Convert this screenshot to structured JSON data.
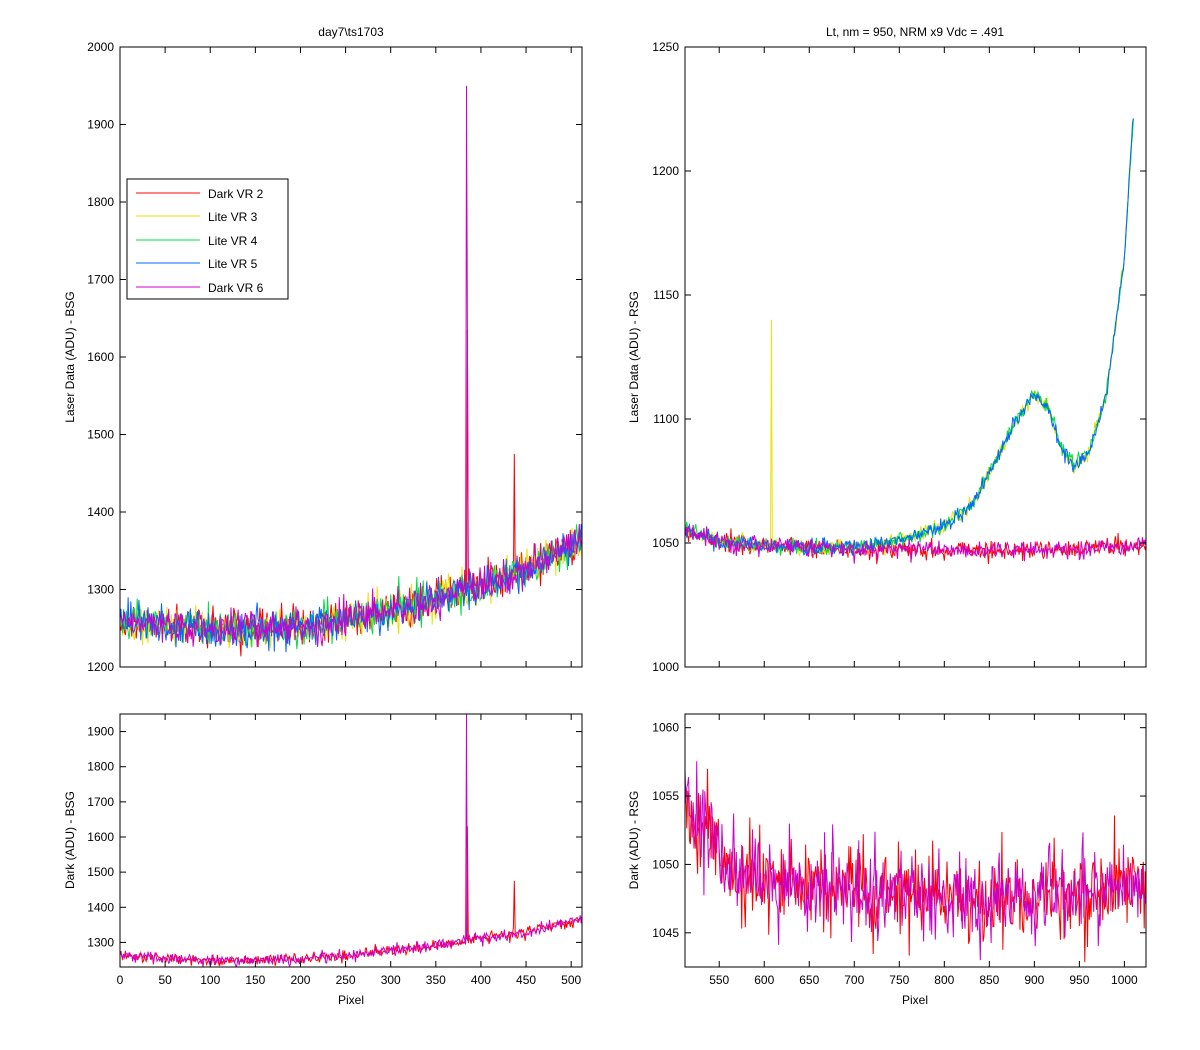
{
  "figure": {
    "background": "#ffffff",
    "axes_color": "#000000"
  },
  "chart_data": [
    {
      "id": "top-left",
      "type": "line",
      "title": "day7\\ts1703",
      "xlabel": "",
      "ylabel": "Laser Data (ADU) - BSG",
      "xlim": [
        0,
        512
      ],
      "ylim": [
        1200,
        2000
      ],
      "xticks": [
        0,
        50,
        100,
        150,
        200,
        250,
        300,
        350,
        400,
        450,
        500
      ],
      "xtick_labels_visible": false,
      "yticks": [
        1200,
        1300,
        1400,
        1500,
        1600,
        1700,
        1800,
        1900,
        2000
      ],
      "grid": false,
      "legend": {
        "placement": "upper-left",
        "entries": [
          {
            "name": "Dark VR 2",
            "color": "#ff0000"
          },
          {
            "name": "Lite VR 3",
            "color": "#e6e600"
          },
          {
            "name": "Lite VR 4",
            "color": "#00dd44"
          },
          {
            "name": "Lite VR 5",
            "color": "#0066ff"
          },
          {
            "name": "Dark VR 6",
            "color": "#cc00cc"
          }
        ]
      },
      "series": [
        {
          "name": "Dark VR 2",
          "color": "#ff0000",
          "noise": 12,
          "baseline": [
            [
              0,
              1260
            ],
            [
              100,
              1248
            ],
            [
              200,
              1252
            ],
            [
              300,
              1272
            ],
            [
              400,
              1305
            ],
            [
              450,
              1325
            ],
            [
              512,
              1365
            ]
          ],
          "spikes": [
            [
              437,
              1475
            ],
            [
              385,
              1635
            ]
          ]
        },
        {
          "name": "Lite VR 3",
          "color": "#e6e600",
          "noise": 12,
          "baseline": [
            [
              0,
              1260
            ],
            [
              100,
              1248
            ],
            [
              200,
              1252
            ],
            [
              300,
              1272
            ],
            [
              400,
              1305
            ],
            [
              450,
              1325
            ],
            [
              512,
              1365
            ]
          ],
          "spikes": []
        },
        {
          "name": "Lite VR 4",
          "color": "#00dd44",
          "noise": 12,
          "baseline": [
            [
              0,
              1260
            ],
            [
              100,
              1248
            ],
            [
              200,
              1252
            ],
            [
              300,
              1272
            ],
            [
              400,
              1305
            ],
            [
              450,
              1325
            ],
            [
              512,
              1365
            ]
          ],
          "spikes": []
        },
        {
          "name": "Lite VR 5",
          "color": "#0066ff",
          "noise": 12,
          "baseline": [
            [
              0,
              1260
            ],
            [
              100,
              1248
            ],
            [
              200,
              1252
            ],
            [
              300,
              1272
            ],
            [
              400,
              1305
            ],
            [
              450,
              1325
            ],
            [
              512,
              1365
            ]
          ],
          "spikes": []
        },
        {
          "name": "Dark VR 6",
          "color": "#cc00cc",
          "noise": 12,
          "baseline": [
            [
              0,
              1260
            ],
            [
              100,
              1248
            ],
            [
              200,
              1252
            ],
            [
              300,
              1272
            ],
            [
              400,
              1305
            ],
            [
              450,
              1325
            ],
            [
              512,
              1365
            ]
          ],
          "spikes": [
            [
              384,
              1950
            ],
            [
              385,
              1635
            ]
          ]
        }
      ]
    },
    {
      "id": "top-right",
      "type": "line",
      "title": "Lt, nm = 950, NRM x9 Vdc = .491",
      "xlabel": "",
      "ylabel": "Laser Data (ADU) - RSG",
      "xlim": [
        512,
        1024
      ],
      "ylim": [
        1000,
        1250
      ],
      "xticks": [
        550,
        600,
        650,
        700,
        750,
        800,
        850,
        900,
        950,
        1000
      ],
      "xtick_labels_visible": false,
      "yticks": [
        1000,
        1050,
        1100,
        1150,
        1200,
        1250
      ],
      "grid": false,
      "series": [
        {
          "name": "Dark VR 2",
          "color": "#ff0000",
          "noise": 1.8,
          "baseline": [
            [
              512,
              1054
            ],
            [
              560,
              1050
            ],
            [
              650,
              1048
            ],
            [
              800,
              1047
            ],
            [
              900,
              1047
            ],
            [
              1024,
              1049
            ]
          ],
          "spikes": []
        },
        {
          "name": "Lite VR 3",
          "color": "#e6e600",
          "noise": 1.5,
          "baseline": [
            [
              512,
              1055
            ],
            [
              560,
              1050
            ],
            [
              650,
              1048
            ],
            [
              700,
              1048
            ],
            [
              760,
              1052
            ],
            [
              800,
              1057
            ],
            [
              830,
              1065
            ],
            [
              860,
              1085
            ],
            [
              880,
              1100
            ],
            [
              900,
              1110
            ],
            [
              915,
              1105
            ],
            [
              930,
              1088
            ],
            [
              945,
              1081
            ],
            [
              960,
              1086
            ],
            [
              980,
              1110
            ],
            [
              1000,
              1165
            ],
            [
              1010,
              1222
            ]
          ],
          "spikes": [
            [
              608,
              1140
            ]
          ]
        },
        {
          "name": "Lite VR 4",
          "color": "#00dd44",
          "noise": 1.5,
          "baseline": [
            [
              512,
              1055
            ],
            [
              560,
              1050
            ],
            [
              650,
              1048
            ],
            [
              700,
              1048
            ],
            [
              760,
              1052
            ],
            [
              800,
              1057
            ],
            [
              830,
              1065
            ],
            [
              860,
              1085
            ],
            [
              880,
              1100
            ],
            [
              900,
              1110
            ],
            [
              915,
              1105
            ],
            [
              930,
              1088
            ],
            [
              945,
              1081
            ],
            [
              960,
              1086
            ],
            [
              980,
              1110
            ],
            [
              1000,
              1165
            ],
            [
              1010,
              1222
            ]
          ],
          "spikes": []
        },
        {
          "name": "Lite VR 5",
          "color": "#0066ff",
          "noise": 1.5,
          "baseline": [
            [
              512,
              1055
            ],
            [
              560,
              1050
            ],
            [
              650,
              1048
            ],
            [
              700,
              1048
            ],
            [
              760,
              1052
            ],
            [
              800,
              1057
            ],
            [
              830,
              1065
            ],
            [
              860,
              1085
            ],
            [
              880,
              1100
            ],
            [
              900,
              1110
            ],
            [
              915,
              1105
            ],
            [
              930,
              1088
            ],
            [
              945,
              1081
            ],
            [
              960,
              1086
            ],
            [
              980,
              1110
            ],
            [
              1000,
              1165
            ],
            [
              1010,
              1224
            ]
          ],
          "spikes": []
        },
        {
          "name": "Dark VR 6",
          "color": "#cc00cc",
          "noise": 1.8,
          "baseline": [
            [
              512,
              1054
            ],
            [
              560,
              1050
            ],
            [
              650,
              1048
            ],
            [
              800,
              1047
            ],
            [
              900,
              1047
            ],
            [
              1024,
              1049
            ]
          ],
          "spikes": []
        }
      ]
    },
    {
      "id": "bottom-left",
      "type": "line",
      "title": "",
      "xlabel": "Pixel",
      "ylabel": "Dark (ADU) - BSG",
      "xlim": [
        0,
        512
      ],
      "ylim": [
        1230,
        1950
      ],
      "xticks": [
        0,
        50,
        100,
        150,
        200,
        250,
        300,
        350,
        400,
        450,
        500
      ],
      "xtick_labels_visible": true,
      "yticks": [
        1300,
        1400,
        1500,
        1600,
        1700,
        1800,
        1900
      ],
      "grid": false,
      "series": [
        {
          "name": "Dark VR 2",
          "color": "#ff0000",
          "noise": 8,
          "baseline": [
            [
              0,
              1262
            ],
            [
              100,
              1248
            ],
            [
              200,
              1252
            ],
            [
              300,
              1275
            ],
            [
              400,
              1310
            ],
            [
              450,
              1330
            ],
            [
              512,
              1368
            ]
          ],
          "spikes": [
            [
              437,
              1475
            ],
            [
              385,
              1630
            ]
          ]
        },
        {
          "name": "Dark VR 6",
          "color": "#cc00cc",
          "noise": 8,
          "baseline": [
            [
              0,
              1262
            ],
            [
              100,
              1248
            ],
            [
              200,
              1252
            ],
            [
              300,
              1275
            ],
            [
              400,
              1310
            ],
            [
              450,
              1330
            ],
            [
              512,
              1368
            ]
          ],
          "spikes": [
            [
              384,
              1950
            ]
          ]
        }
      ]
    },
    {
      "id": "bottom-right",
      "type": "line",
      "title": "",
      "xlabel": "Pixel",
      "ylabel": "Dark (ADU) - RSG",
      "xlim": [
        512,
        1024
      ],
      "ylim": [
        1042.5,
        1061
      ],
      "xticks": [
        550,
        600,
        650,
        700,
        750,
        800,
        850,
        900,
        950,
        1000
      ],
      "xtick_labels_visible": true,
      "yticks": [
        1045,
        1050,
        1055,
        1060
      ],
      "grid": false,
      "series": [
        {
          "name": "Dark VR 2",
          "color": "#ff0000",
          "noise": 1.6,
          "baseline": [
            [
              512,
              1054
            ],
            [
              560,
              1050
            ],
            [
              620,
              1048.5
            ],
            [
              700,
              1048
            ],
            [
              800,
              1047.5
            ],
            [
              900,
              1047.5
            ],
            [
              1024,
              1048.5
            ]
          ],
          "spikes": []
        },
        {
          "name": "Dark VR 6",
          "color": "#cc00cc",
          "noise": 1.6,
          "baseline": [
            [
              512,
              1055
            ],
            [
              560,
              1050
            ],
            [
              620,
              1048.5
            ],
            [
              700,
              1048
            ],
            [
              800,
              1047.5
            ],
            [
              900,
              1047.5
            ],
            [
              1024,
              1048.5
            ]
          ],
          "spikes": [
            [
              512,
              1057
            ],
            [
              840,
              1043
            ]
          ]
        }
      ]
    }
  ]
}
